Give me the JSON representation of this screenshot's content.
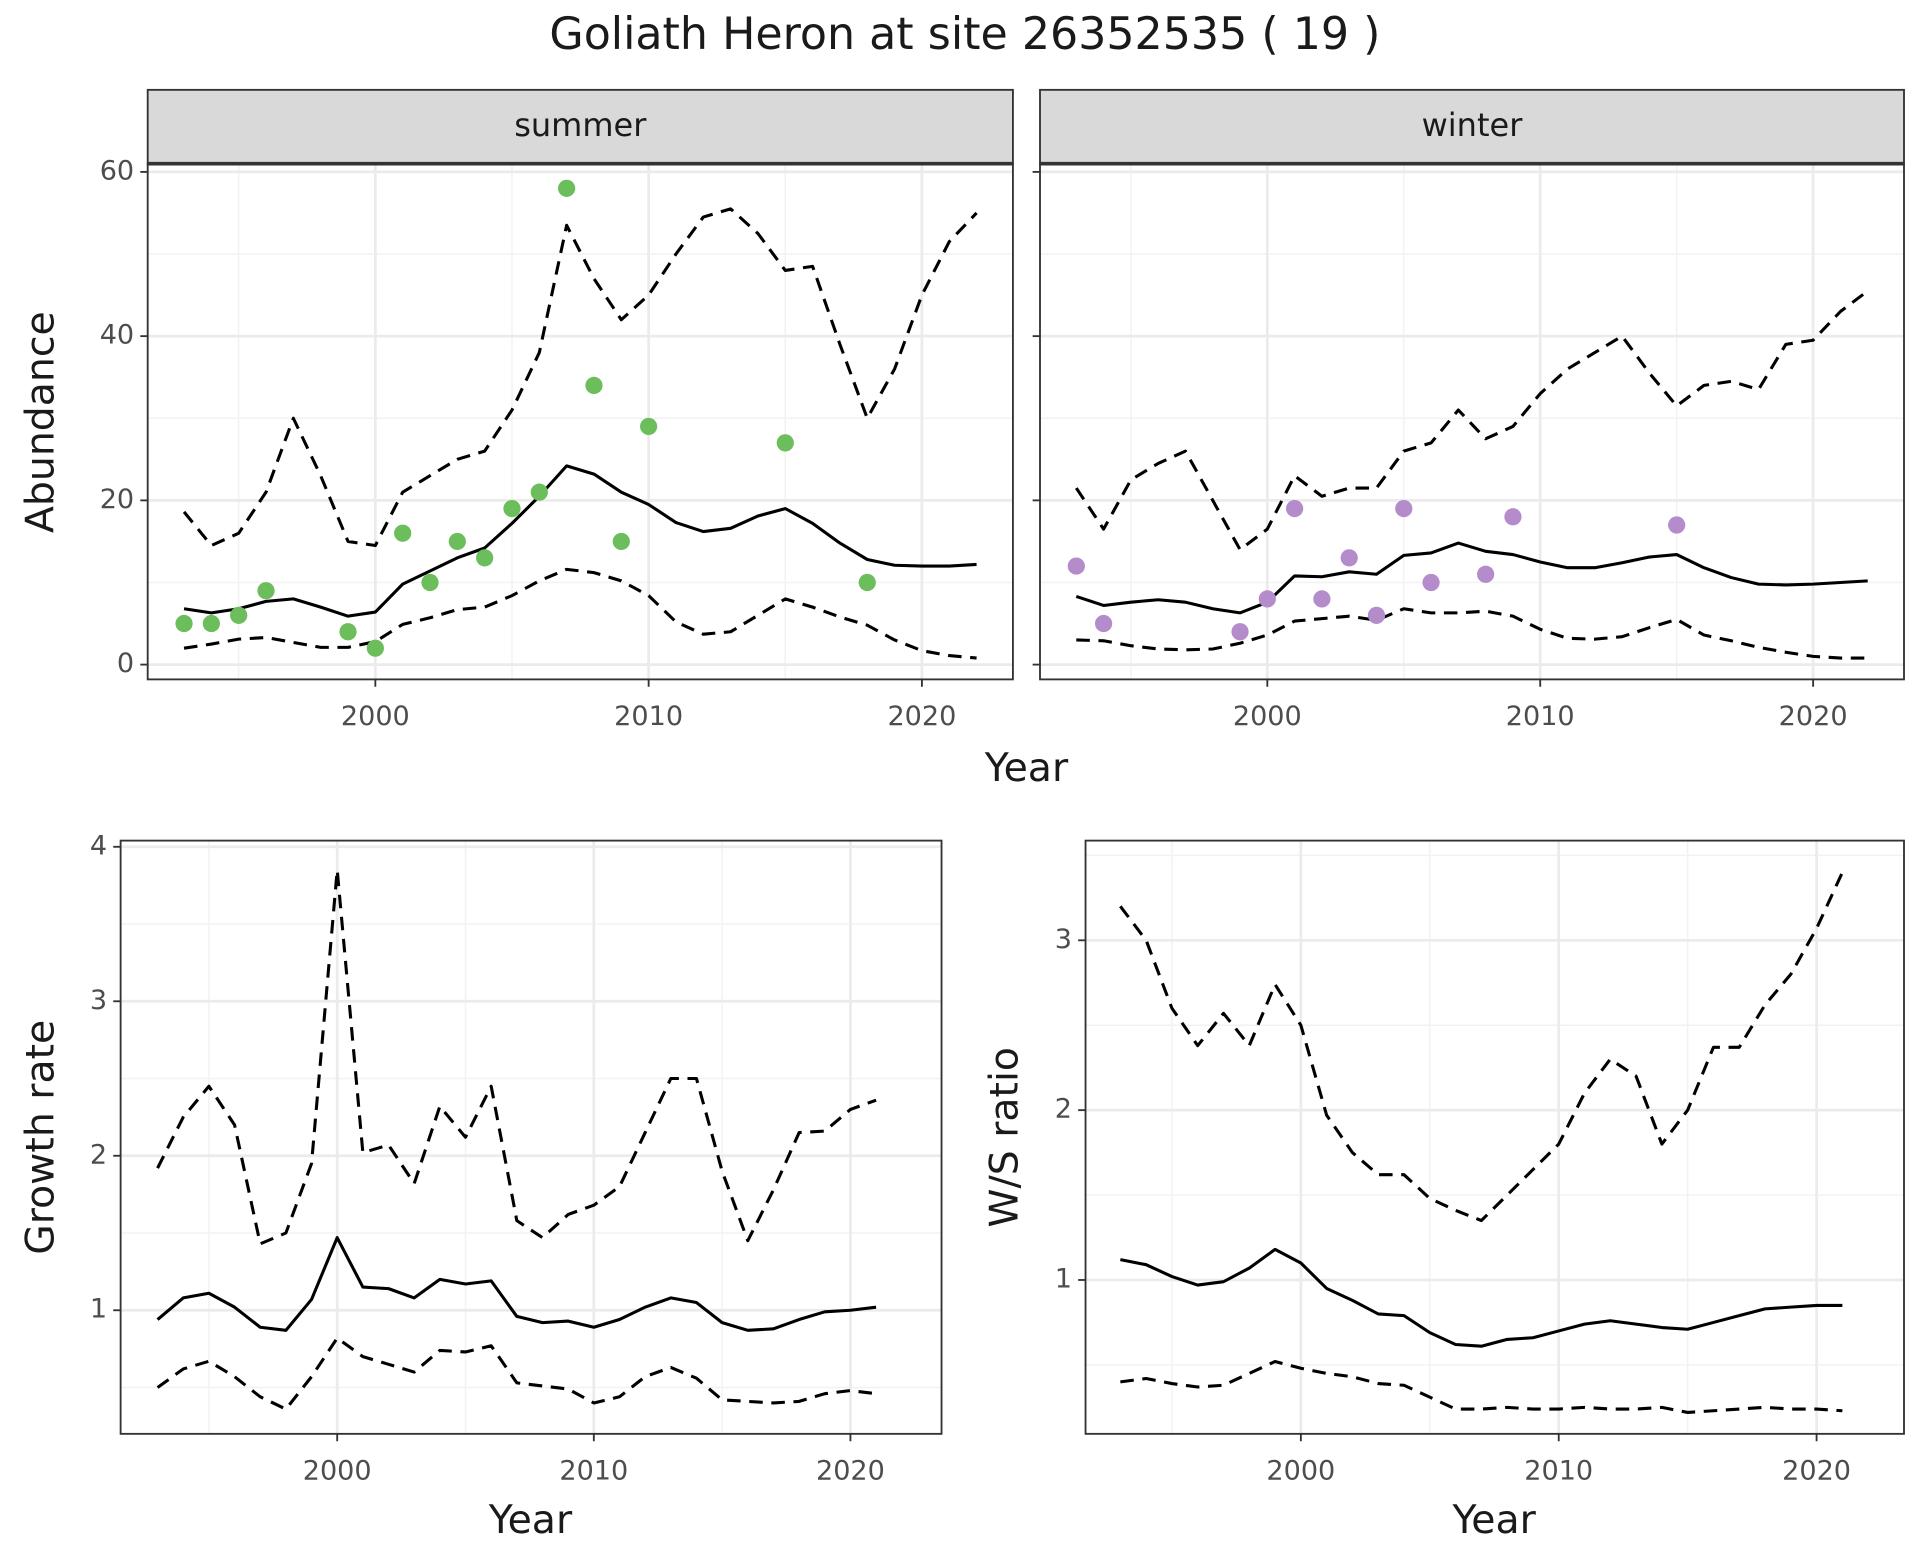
{
  "title": "Goliath Heron at site 26352535 ( 19 )",
  "chart_data": [
    {
      "type": "line",
      "xlabel": "Year",
      "ylabel": "Abundance",
      "xlim": [
        1991.67,
        2023.33
      ],
      "ylim": [
        -1.8,
        61
      ],
      "xticks": [
        2000,
        2010,
        2020
      ],
      "yticks": [
        0,
        20,
        40,
        60
      ],
      "grid": true,
      "facets": [
        {
          "strip": "summer",
          "x": [
            1993,
            1994,
            1995,
            1996,
            1997,
            1998,
            1999,
            2000,
            2001,
            2002,
            2003,
            2004,
            2005,
            2006,
            2007,
            2008,
            2009,
            2010,
            2011,
            2012,
            2013,
            2014,
            2015,
            2016,
            2017,
            2018,
            2019,
            2020,
            2021,
            2022
          ],
          "series": [
            {
              "color": "#000000",
              "dash": "solid",
              "values": [
                6.8,
                6.3,
                6.8,
                7.7,
                8.0,
                7.0,
                5.9,
                6.4,
                9.8,
                11.4,
                13.0,
                14.2,
                17.2,
                20.5,
                24.2,
                23.2,
                21.0,
                19.5,
                17.3,
                16.2,
                16.6,
                18.1,
                19.0,
                17.2,
                14.8,
                12.8,
                12.1,
                12.0,
                12.0,
                12.2
              ]
            },
            {
              "color": "#000000",
              "dash": "dashed",
              "values": [
                18.6,
                14.5,
                16,
                21,
                30,
                23,
                15,
                14.5,
                21,
                23,
                25,
                26,
                31,
                38,
                53.5,
                47,
                42,
                45,
                50,
                54.5,
                55.5,
                52.5,
                48,
                48.5,
                39,
                30,
                36,
                45,
                51.5,
                55
              ]
            },
            {
              "color": "#000000",
              "dash": "dashed",
              "values": [
                2.0,
                2.5,
                3.1,
                3.3,
                2.7,
                2.1,
                2.1,
                2.8,
                4.9,
                5.7,
                6.7,
                7.0,
                8.4,
                10.2,
                11.6,
                11.2,
                10.2,
                8.4,
                5.2,
                3.7,
                4.0,
                6.0,
                8.0,
                7.0,
                5.8,
                4.8,
                3.0,
                1.7,
                1.1,
                0.8
              ]
            }
          ],
          "points": {
            "color": "#6cbd5b",
            "x": [
              1993,
              1994,
              1995,
              1996,
              1999,
              2000,
              2001,
              2002,
              2003,
              2004,
              2005,
              2006,
              2007,
              2008,
              2009,
              2010,
              2015,
              2018
            ],
            "values": [
              5,
              5,
              6,
              9,
              4,
              2,
              16,
              10,
              15,
              13,
              19,
              21,
              58,
              34,
              15,
              29,
              27,
              10
            ]
          }
        },
        {
          "strip": "winter",
          "x": [
            1993,
            1994,
            1995,
            1996,
            1997,
            1998,
            1999,
            2000,
            2001,
            2002,
            2003,
            2004,
            2005,
            2006,
            2007,
            2008,
            2009,
            2010,
            2011,
            2012,
            2013,
            2014,
            2015,
            2016,
            2017,
            2018,
            2019,
            2020,
            2021,
            2022
          ],
          "series": [
            {
              "color": "#000000",
              "dash": "solid",
              "values": [
                8.3,
                7.2,
                7.6,
                7.9,
                7.6,
                6.8,
                6.3,
                7.6,
                10.8,
                10.7,
                11.3,
                11.0,
                13.3,
                13.6,
                14.8,
                13.8,
                13.4,
                12.5,
                11.8,
                11.8,
                12.4,
                13.1,
                13.4,
                11.8,
                10.6,
                9.8,
                9.7,
                9.8,
                10.0,
                10.2
              ]
            },
            {
              "color": "#000000",
              "dash": "dashed",
              "values": [
                21.5,
                16.5,
                22.5,
                24.5,
                26,
                20,
                14,
                16.5,
                23,
                20.5,
                21.5,
                21.5,
                26,
                27,
                31,
                27.5,
                29,
                33,
                36,
                38,
                40,
                35.5,
                31.5,
                34,
                34.5,
                33.5,
                39,
                39.5,
                43,
                45.5
              ]
            },
            {
              "color": "#000000",
              "dash": "dashed",
              "values": [
                3,
                2.9,
                2.3,
                1.9,
                1.8,
                1.9,
                2.6,
                3.6,
                5.3,
                5.6,
                5.9,
                5.4,
                6.8,
                6.3,
                6.3,
                6.5,
                5.9,
                4.3,
                3.2,
                3.1,
                3.4,
                4.5,
                5.5,
                3.6,
                2.9,
                2.1,
                1.5,
                1.0,
                0.8,
                0.8
              ]
            }
          ],
          "points": {
            "color": "#b48ccb",
            "x": [
              1993,
              1994,
              1999,
              2000,
              2001,
              2002,
              2003,
              2004,
              2005,
              2006,
              2008,
              2009,
              2015
            ],
            "values": [
              12,
              5,
              4,
              8,
              19,
              8,
              13,
              6,
              19,
              10,
              11,
              18,
              17
            ]
          }
        }
      ]
    },
    {
      "type": "line",
      "xlabel": "Year",
      "ylabel": "Growth rate",
      "xlim": [
        1991.56,
        2023.55
      ],
      "ylim": [
        0.2,
        4.04
      ],
      "xticks": [
        2000,
        2010,
        2020
      ],
      "yticks": [
        1,
        2,
        3,
        4
      ],
      "grid": true,
      "facets": [
        {
          "x": [
            1993,
            1994,
            1995,
            1996,
            1997,
            1998,
            1999,
            2000,
            2001,
            2002,
            2003,
            2004,
            2005,
            2006,
            2007,
            2008,
            2009,
            2010,
            2011,
            2012,
            2013,
            2014,
            2015,
            2016,
            2017,
            2018,
            2019,
            2020,
            2021
          ],
          "series": [
            {
              "color": "#000000",
              "dash": "solid",
              "values": [
                0.94,
                1.08,
                1.11,
                1.02,
                0.89,
                0.87,
                1.07,
                1.47,
                1.15,
                1.14,
                1.08,
                1.2,
                1.17,
                1.19,
                0.96,
                0.92,
                0.93,
                0.89,
                0.94,
                1.02,
                1.08,
                1.05,
                0.92,
                0.87,
                0.88,
                0.94,
                0.99,
                1.0,
                1.02
              ]
            },
            {
              "color": "#000000",
              "dash": "dashed",
              "values": [
                1.92,
                2.25,
                2.45,
                2.2,
                1.43,
                1.5,
                1.95,
                3.85,
                2.02,
                2.07,
                1.82,
                2.32,
                2.12,
                2.45,
                1.58,
                1.47,
                1.62,
                1.68,
                1.8,
                2.15,
                2.5,
                2.5,
                1.9,
                1.45,
                1.78,
                2.15,
                2.16,
                2.3,
                2.36
              ]
            },
            {
              "color": "#000000",
              "dash": "dashed",
              "values": [
                0.5,
                0.62,
                0.67,
                0.57,
                0.44,
                0.36,
                0.57,
                0.82,
                0.7,
                0.65,
                0.6,
                0.74,
                0.73,
                0.77,
                0.53,
                0.51,
                0.49,
                0.4,
                0.44,
                0.57,
                0.63,
                0.56,
                0.42,
                0.41,
                0.4,
                0.41,
                0.46,
                0.48,
                0.46
              ]
            }
          ]
        }
      ]
    },
    {
      "type": "line",
      "xlabel": "Year",
      "ylabel": "W/S ratio",
      "xlim": [
        1991.65,
        2023.39
      ],
      "ylim": [
        0.094,
        3.587
      ],
      "xticks": [
        2000,
        2010,
        2020
      ],
      "yticks": [
        1,
        2,
        3
      ],
      "grid": true,
      "facets": [
        {
          "x": [
            1993,
            1994,
            1995,
            1996,
            1997,
            1998,
            1999,
            2000,
            2001,
            2002,
            2003,
            2004,
            2005,
            2006,
            2007,
            2008,
            2009,
            2010,
            2011,
            2012,
            2013,
            2014,
            2015,
            2016,
            2017,
            2018,
            2019,
            2020,
            2021
          ],
          "series": [
            {
              "color": "#000000",
              "dash": "solid",
              "values": [
                1.12,
                1.09,
                1.02,
                0.97,
                0.99,
                1.07,
                1.18,
                1.1,
                0.95,
                0.88,
                0.8,
                0.79,
                0.69,
                0.62,
                0.61,
                0.65,
                0.66,
                0.7,
                0.74,
                0.76,
                0.74,
                0.72,
                0.71,
                0.75,
                0.79,
                0.83,
                0.84,
                0.85,
                0.85
              ]
            },
            {
              "color": "#000000",
              "dash": "dashed",
              "values": [
                3.2,
                3.0,
                2.6,
                2.38,
                2.57,
                2.38,
                2.74,
                2.5,
                1.97,
                1.75,
                1.62,
                1.62,
                1.48,
                1.41,
                1.35,
                1.5,
                1.65,
                1.8,
                2.1,
                2.3,
                2.2,
                1.8,
                2.0,
                2.37,
                2.37,
                2.62,
                2.8,
                3.07,
                3.4
              ]
            },
            {
              "color": "#000000",
              "dash": "dashed",
              "values": [
                0.4,
                0.42,
                0.39,
                0.37,
                0.38,
                0.45,
                0.52,
                0.48,
                0.45,
                0.43,
                0.39,
                0.38,
                0.31,
                0.24,
                0.24,
                0.25,
                0.24,
                0.24,
                0.25,
                0.24,
                0.24,
                0.25,
                0.22,
                0.23,
                0.24,
                0.25,
                0.24,
                0.24,
                0.23
              ]
            }
          ]
        }
      ]
    }
  ]
}
